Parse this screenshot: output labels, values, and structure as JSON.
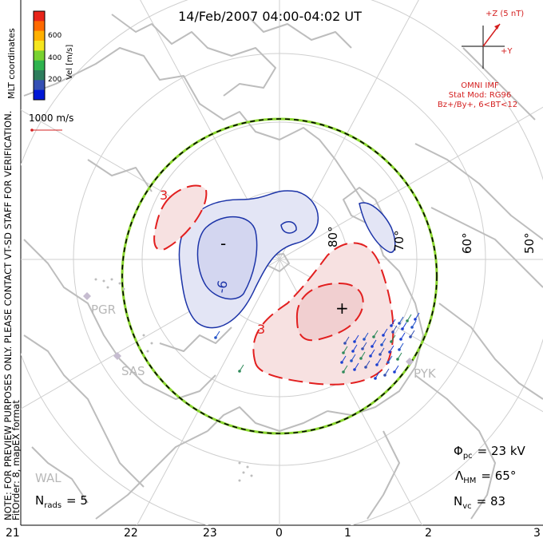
{
  "title": "14/Feb/2007 04:00-04:02 UT",
  "colorbar": {
    "label": "Vel [m/s]",
    "ticks": [
      "600",
      "400",
      "200"
    ],
    "colors": [
      "#e8241a",
      "#ff6a00",
      "#ffb000",
      "#f5e61e",
      "#78d231",
      "#2fb34f",
      "#2e7d5d",
      "#3550b4",
      "#0018d6"
    ]
  },
  "side_labels": {
    "coords": "MLT coordinates",
    "note": "NOTE: FOR PREVIEW PURPOSES ONLY. PLEASE CONTACT VT-SD STAFF FOR VERIFICATION.",
    "fit": "FitOrder: 8,  mapEX format"
  },
  "scale_vector": {
    "label": "1000 m/s"
  },
  "imf": {
    "z_label": "+Z (5 nT)",
    "y_label": "+Y",
    "source": "OMNI IMF",
    "model": "Stat Mod: RG96",
    "conditions": "Bz+/By+, 6<BT<12",
    "color": "#d42020"
  },
  "latitude_labels": [
    "80°",
    "70°",
    "60°",
    "50°"
  ],
  "contour_labels": {
    "neg_min": "-",
    "neg_level": "-6",
    "pos_max": "+",
    "pos_level_a": "3",
    "pos_level_b": "3"
  },
  "stations": [
    "PGR",
    "SAS",
    "PYK",
    "WAL"
  ],
  "stats": {
    "phi_pc": "Φ",
    "phi_pc_sub": "pc",
    "phi_pc_value": "= 23 kV",
    "lambda_hm": "Λ",
    "lambda_hm_sub": "HM",
    "lambda_hm_value": "= 65°",
    "n_vc": "N",
    "n_vc_sub": "vc",
    "n_vc_value": "= 83",
    "n_rads": "N",
    "n_rads_sub": "rads",
    "n_rads_value": "= 5"
  },
  "mlt_axis": [
    "21",
    "22",
    "23",
    "0",
    "1",
    "2",
    "3"
  ]
}
